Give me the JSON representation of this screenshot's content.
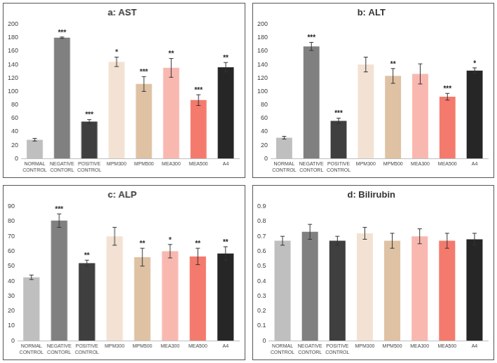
{
  "chart_data": [
    {
      "type": "bar",
      "title": "a: AST",
      "categories": [
        "NORMAL CONTROL",
        "NEGATIVE CONTORL",
        "POSITIVE CONTROL",
        "MPM300",
        "MPM500",
        "MEA300",
        "MEA500",
        "A4"
      ],
      "values": [
        28,
        180,
        55,
        144,
        111,
        135,
        87,
        136
      ],
      "errors": [
        2,
        1,
        3,
        7,
        11,
        14,
        8,
        7
      ],
      "significance": [
        null,
        "***",
        "***",
        "*",
        "***",
        "**",
        "***",
        "**"
      ],
      "colors": [
        "#bfbfbf",
        "#808080",
        "#3f3f3f",
        "#f3e2d3",
        "#dfc2a3",
        "#f8b8b0",
        "#f47a6d",
        "#262626"
      ],
      "ylim": [
        0,
        200
      ],
      "yticks": [
        0,
        20,
        40,
        60,
        80,
        100,
        120,
        140,
        160,
        180,
        200
      ],
      "grid": false
    },
    {
      "type": "bar",
      "title": "b: ALT",
      "categories": [
        "NORMAL CONTROL",
        "NEGATIVE CONTORL",
        "POSITIVE CONTROL",
        "MPM300",
        "MPM500",
        "MEA300",
        "MEA500",
        "A4"
      ],
      "values": [
        31,
        167,
        56,
        140,
        123,
        126,
        92,
        131
      ],
      "errors": [
        2,
        6,
        4,
        11,
        11,
        15,
        5,
        4
      ],
      "significance": [
        null,
        "***",
        "***",
        null,
        "**",
        null,
        "***",
        "*"
      ],
      "colors": [
        "#bfbfbf",
        "#808080",
        "#3f3f3f",
        "#f3e2d3",
        "#dfc2a3",
        "#f8b8b0",
        "#f47a6d",
        "#262626"
      ],
      "ylim": [
        0,
        200
      ],
      "yticks": [
        0,
        20,
        40,
        60,
        80,
        100,
        120,
        140,
        160,
        180,
        200
      ],
      "grid": false
    },
    {
      "type": "bar",
      "title": "c: ALP",
      "categories": [
        "NORMAL CONTROL",
        "NEGATIVE CONTORL",
        "POSITIVE CONTROL",
        "MPM300",
        "MPM500",
        "MEA300",
        "MEA500",
        "A4"
      ],
      "values": [
        42.5,
        80.5,
        52,
        70,
        56,
        60,
        56.5,
        58.5
      ],
      "errors": [
        1.5,
        4.5,
        2,
        6,
        6,
        4.5,
        5.5,
        4.5
      ],
      "significance": [
        null,
        "***",
        "**",
        null,
        "**",
        "*",
        "**",
        "**"
      ],
      "colors": [
        "#bfbfbf",
        "#808080",
        "#3f3f3f",
        "#f3e2d3",
        "#dfc2a3",
        "#f8b8b0",
        "#f47a6d",
        "#262626"
      ],
      "ylim": [
        0,
        90
      ],
      "yticks": [
        0,
        10,
        20,
        30,
        40,
        50,
        60,
        70,
        80,
        90
      ],
      "grid": false
    },
    {
      "type": "bar",
      "title": "d: Bilirubin",
      "categories": [
        "NORMAL CONTROL",
        "NEGATIVE CONTORL",
        "POSITIVE CONTROL",
        "MPM300",
        "MPM500",
        "MEA300",
        "MEA500",
        "A4"
      ],
      "values": [
        0.67,
        0.73,
        0.67,
        0.72,
        0.67,
        0.7,
        0.67,
        0.68
      ],
      "errors": [
        0.03,
        0.05,
        0.03,
        0.04,
        0.05,
        0.05,
        0.05,
        0.04
      ],
      "colors": [
        "#bfbfbf",
        "#808080",
        "#3f3f3f",
        "#f3e2d3",
        "#dfc2a3",
        "#f8b8b0",
        "#f47a6d",
        "#262626"
      ],
      "ylim": [
        0,
        0.9
      ],
      "yticks": [
        0,
        0.1,
        0.2,
        0.3,
        0.4,
        0.5,
        0.6,
        0.7,
        0.8,
        0.9
      ],
      "grid": false
    }
  ]
}
